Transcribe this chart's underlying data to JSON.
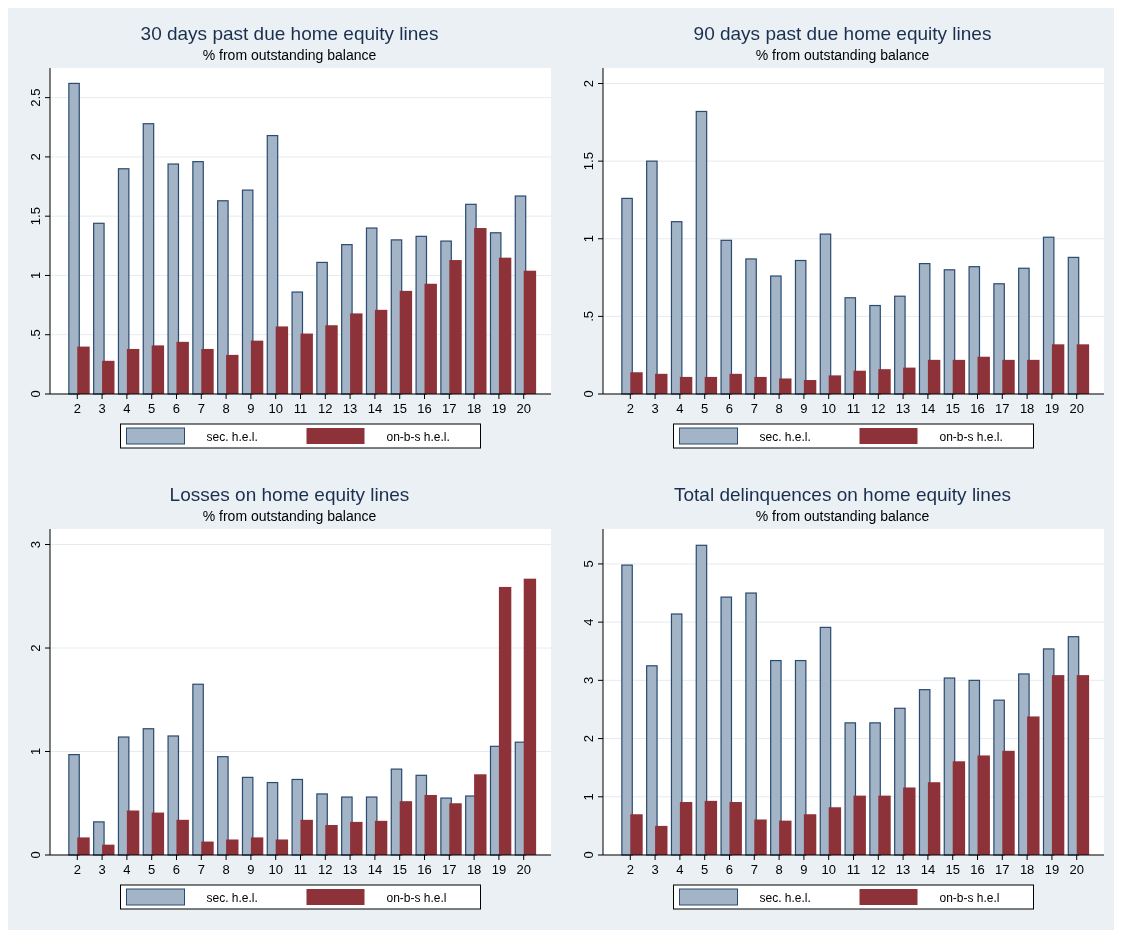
{
  "chart_data": [
    {
      "type": "bar",
      "title": "30 days past due home equity lines",
      "subtitle": "% from outstanding balance",
      "categories": [
        "2",
        "3",
        "4",
        "5",
        "6",
        "7",
        "8",
        "9",
        "10",
        "11",
        "12",
        "13",
        "14",
        "15",
        "16",
        "17",
        "18",
        "19",
        "20"
      ],
      "series": [
        {
          "name": "sec. h.e.l.",
          "color": "#a3b4c6",
          "values": [
            2.62,
            1.44,
            1.9,
            2.28,
            1.94,
            1.96,
            1.63,
            1.72,
            2.18,
            0.86,
            1.11,
            1.26,
            1.4,
            1.3,
            1.33,
            1.29,
            1.6,
            1.36,
            1.67
          ]
        },
        {
          "name": "on-b-s h.e.l.",
          "color": "#8e3239",
          "values": [
            0.4,
            0.28,
            0.38,
            0.41,
            0.44,
            0.38,
            0.33,
            0.45,
            0.57,
            0.51,
            0.58,
            0.68,
            0.71,
            0.87,
            0.93,
            1.13,
            1.4,
            1.15,
            1.04
          ]
        }
      ],
      "ylim": [
        0,
        2.75
      ],
      "yticks": [
        0,
        {
          "value": 0.5,
          "label": ".5"
        },
        1,
        1.5,
        2,
        2.5
      ],
      "grid": "y",
      "legend": "bottom"
    },
    {
      "type": "bar",
      "title": "90 days past due home equity lines",
      "subtitle": "% from outstanding balance",
      "categories": [
        "2",
        "3",
        "4",
        "5",
        "6",
        "7",
        "8",
        "9",
        "10",
        "11",
        "12",
        "13",
        "14",
        "15",
        "16",
        "17",
        "18",
        "19",
        "20"
      ],
      "series": [
        {
          "name": "sec. h.e.l.",
          "color": "#a3b4c6",
          "values": [
            1.26,
            1.5,
            1.11,
            1.82,
            0.99,
            0.87,
            0.76,
            0.86,
            1.03,
            0.62,
            0.57,
            0.63,
            0.84,
            0.8,
            0.82,
            0.71,
            0.81,
            1.01,
            0.88
          ]
        },
        {
          "name": "on-b-s h.e.l.",
          "color": "#8e3239",
          "values": [
            0.14,
            0.13,
            0.11,
            0.11,
            0.13,
            0.11,
            0.1,
            0.09,
            0.12,
            0.15,
            0.16,
            0.17,
            0.22,
            0.22,
            0.24,
            0.22,
            0.22,
            0.32,
            0.32
          ]
        }
      ],
      "ylim": [
        0,
        2.1
      ],
      "yticks": [
        0,
        {
          "value": 0.5,
          "label": ".5"
        },
        1,
        1.5,
        2
      ],
      "grid": "y",
      "legend": "bottom"
    },
    {
      "type": "bar",
      "title": "Losses on home equity lines",
      "subtitle": "% from outstanding balance",
      "categories": [
        "2",
        "3",
        "4",
        "5",
        "6",
        "7",
        "8",
        "9",
        "10",
        "11",
        "12",
        "13",
        "14",
        "15",
        "16",
        "17",
        "18",
        "19",
        "20"
      ],
      "series": [
        {
          "name": "sec. h.e.l.",
          "color": "#a3b4c6",
          "values": [
            0.97,
            0.32,
            1.14,
            1.22,
            1.15,
            1.65,
            0.95,
            0.75,
            0.7,
            0.73,
            0.59,
            0.56,
            0.56,
            0.83,
            0.77,
            0.55,
            0.57,
            1.05,
            1.09
          ]
        },
        {
          "name": "on-b-s h.e.l",
          "color": "#8e3239",
          "values": [
            0.17,
            0.1,
            0.43,
            0.41,
            0.34,
            0.13,
            0.15,
            0.17,
            0.15,
            0.34,
            0.29,
            0.32,
            0.33,
            0.52,
            0.58,
            0.5,
            0.78,
            2.59,
            2.67
          ]
        }
      ],
      "ylim": [
        0,
        3.15
      ],
      "yticks": [
        0,
        1,
        2,
        3
      ],
      "grid": "y",
      "legend": "bottom"
    },
    {
      "type": "bar",
      "title": "Total delinquences on home equity lines",
      "subtitle": "% from outstanding balance",
      "categories": [
        "2",
        "3",
        "4",
        "5",
        "6",
        "7",
        "8",
        "9",
        "10",
        "11",
        "12",
        "13",
        "14",
        "15",
        "16",
        "17",
        "18",
        "19",
        "20"
      ],
      "series": [
        {
          "name": "sec. h.e.l.",
          "color": "#a3b4c6",
          "values": [
            4.98,
            3.25,
            4.14,
            5.32,
            4.43,
            4.5,
            3.34,
            3.34,
            3.91,
            2.27,
            2.27,
            2.52,
            2.84,
            3.04,
            3.0,
            2.66,
            3.11,
            3.54,
            3.75
          ]
        },
        {
          "name": "on-b-s h.e.l",
          "color": "#8e3239",
          "values": [
            0.7,
            0.5,
            0.91,
            0.93,
            0.91,
            0.61,
            0.59,
            0.7,
            0.82,
            1.02,
            1.02,
            1.16,
            1.25,
            1.61,
            1.71,
            1.79,
            2.38,
            3.09,
            3.09
          ]
        }
      ],
      "ylim": [
        0,
        5.6
      ],
      "yticks": [
        0,
        1,
        2,
        3,
        4,
        5
      ],
      "grid": "y",
      "legend": "bottom"
    }
  ]
}
